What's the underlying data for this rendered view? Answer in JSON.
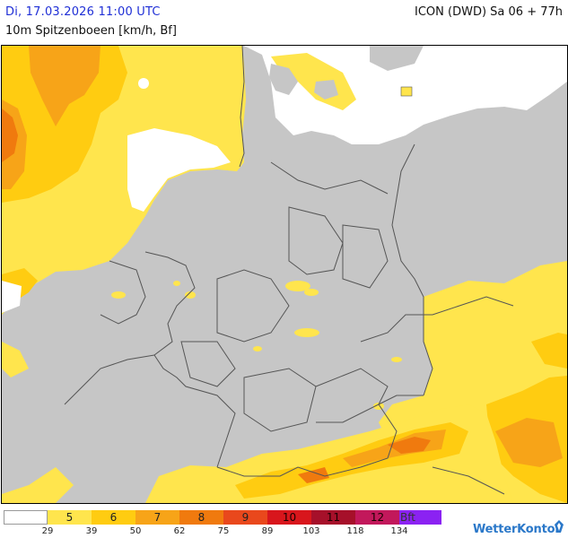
{
  "header": {
    "datetime": "Di, 17.03.2026 11:00 UTC",
    "parameter": "10m Spitzenboeen [km/h, Bf]",
    "model_run": "ICON (DWD) Sa 06 + 77h"
  },
  "colors": {
    "land": "#c6c6c6",
    "sea_no_gusts": "#ffffff",
    "borders": "#555555",
    "date_text": "#1f2fd6"
  },
  "legend": {
    "cells": [
      {
        "label": "",
        "color": "#ffffff"
      },
      {
        "label": "5",
        "color": "#ffe54d"
      },
      {
        "label": "6",
        "color": "#ffcc11"
      },
      {
        "label": "7",
        "color": "#f7a418"
      },
      {
        "label": "8",
        "color": "#f07a0e"
      },
      {
        "label": "9",
        "color": "#e9481c"
      },
      {
        "label": "10",
        "color": "#d8161c"
      },
      {
        "label": "11",
        "color": "#a6102a"
      },
      {
        "label": "12",
        "color": "#c2185b"
      },
      {
        "label": "Bft",
        "color": "#8b22f2"
      }
    ],
    "ticks": [
      "29",
      "39",
      "50",
      "62",
      "75",
      "89",
      "103",
      "118",
      "134"
    ]
  },
  "brand": {
    "name": "WetterKontor"
  }
}
